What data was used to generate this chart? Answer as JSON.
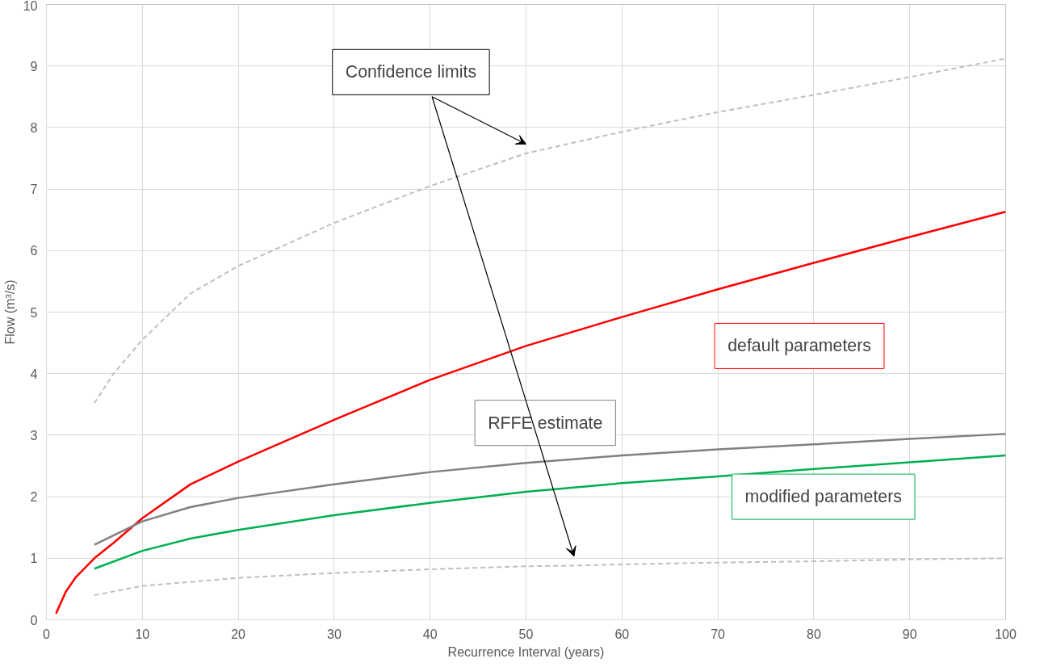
{
  "chart_data": {
    "type": "line",
    "xlabel": "Recurrence Interval (years)",
    "ylabel": "Flow (m³/s)",
    "xlim": [
      0,
      100
    ],
    "ylim": [
      0,
      10
    ],
    "xticks": [
      0,
      10,
      20,
      30,
      40,
      50,
      60,
      70,
      80,
      90,
      100
    ],
    "yticks": [
      0,
      1,
      2,
      3,
      4,
      5,
      6,
      7,
      8,
      9,
      10
    ],
    "grid": true,
    "marker": "none",
    "series": [
      {
        "color": "#ff0000",
        "line_style": "solid",
        "x": [
          1,
          2,
          3,
          5,
          7,
          10,
          15,
          20,
          30,
          40,
          50,
          60,
          70,
          80,
          90,
          100
        ],
        "values": [
          0.1,
          0.45,
          0.68,
          1.0,
          1.25,
          1.65,
          2.2,
          2.57,
          3.25,
          3.9,
          4.45,
          4.92,
          5.37,
          5.8,
          6.22,
          6.63
        ]
      },
      {
        "color": "#808080",
        "line_style": "solid",
        "x": [
          5,
          10,
          15,
          20,
          30,
          40,
          50,
          60,
          70,
          80,
          90,
          100
        ],
        "values": [
          1.22,
          1.6,
          1.83,
          1.98,
          2.2,
          2.4,
          2.55,
          2.67,
          2.77,
          2.85,
          2.94,
          3.02
        ]
      },
      {
        "color": "#00b050",
        "line_style": "solid",
        "x": [
          5,
          10,
          15,
          20,
          30,
          40,
          50,
          60,
          70,
          80,
          90,
          100
        ],
        "values": [
          0.83,
          1.12,
          1.32,
          1.46,
          1.7,
          1.9,
          2.08,
          2.22,
          2.33,
          2.45,
          2.56,
          2.67
        ]
      },
      {
        "color": "#bfbfbf",
        "line_style": "dashed",
        "x": [
          5,
          7,
          10,
          15,
          20,
          30,
          40,
          50,
          60,
          70,
          80,
          90,
          100
        ],
        "values": [
          3.52,
          4.0,
          4.55,
          5.3,
          5.75,
          6.45,
          7.05,
          7.58,
          7.93,
          8.25,
          8.53,
          8.82,
          9.12
        ]
      },
      {
        "color": "#bfbfbf",
        "line_style": "dashed",
        "x": [
          5,
          10,
          20,
          30,
          40,
          50,
          55,
          60,
          70,
          80,
          90,
          100
        ],
        "values": [
          0.4,
          0.55,
          0.68,
          0.76,
          0.82,
          0.87,
          0.88,
          0.9,
          0.93,
          0.95,
          0.98,
          1.0
        ]
      }
    ],
    "annotations": [
      "Confidence limits",
      "RFFE estimate",
      "default parameters",
      "modified parameters"
    ]
  }
}
